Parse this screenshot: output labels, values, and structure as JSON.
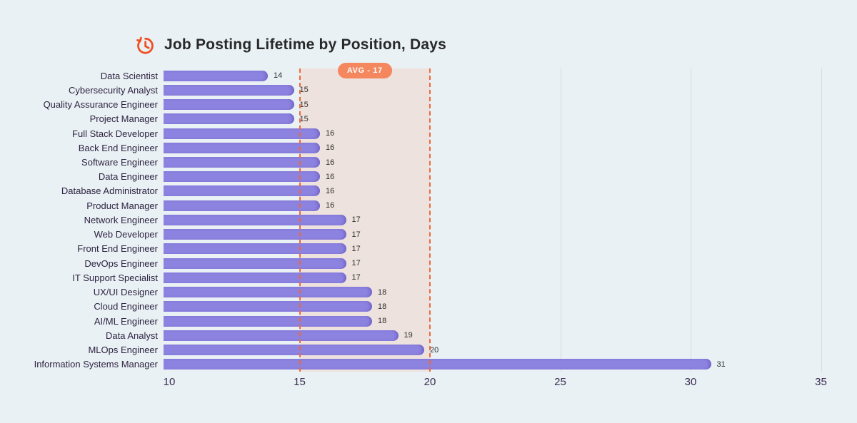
{
  "title": {
    "text": "Job Posting Lifetime by Position, Days",
    "icon": "history-clock-icon"
  },
  "avg_badge": {
    "label": "AVG - 17",
    "value": 17
  },
  "chart_data": {
    "type": "bar",
    "orientation": "horizontal",
    "title": "Job Posting Lifetime by Position, Days",
    "categories": [
      "Data Scientist",
      "Cybersecurity Analyst",
      "Quality Assurance Engineer",
      "Project Manager",
      "Full Stack Developer",
      "Back End Engineer",
      "Software Engineer",
      "Data Engineer",
      "Database Administrator",
      "Product Manager",
      "Network Engineer",
      "Web Developer",
      "Front End Engineer",
      "DevOps Engineer",
      "IT Support Specialist",
      "UX/UI Designer",
      "Cloud Engineer",
      "AI/ML Engineer",
      "Data Analyst",
      "MLOps Engineer",
      "Information Systems Manager"
    ],
    "values": [
      14,
      15,
      15,
      15,
      16,
      16,
      16,
      16,
      16,
      16,
      17,
      17,
      17,
      17,
      17,
      18,
      18,
      18,
      19,
      20,
      31
    ],
    "xlim": [
      10,
      35
    ],
    "x_ticks": [
      10,
      15,
      20,
      25,
      30,
      35
    ],
    "gridline_ticks": [
      25,
      30,
      35
    ],
    "avg_band": {
      "from": 15,
      "to": 20,
      "label": "AVG - 17"
    },
    "legend": "none",
    "colors": {
      "bar": "#8c82e0",
      "band": "#ede2dd",
      "band_border": "#ec6a3c",
      "badge": "#f5875f",
      "background": "#e9f1f4",
      "title_icon": "#f04e23",
      "gridline": "#d2dbde"
    }
  }
}
